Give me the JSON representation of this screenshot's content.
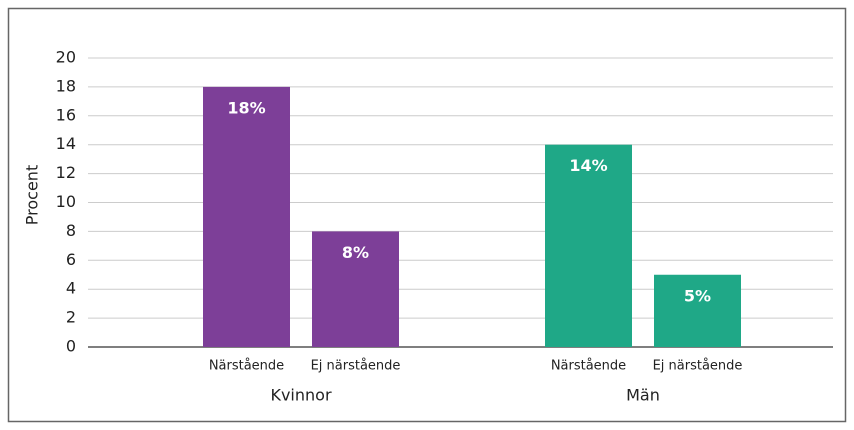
{
  "chart_data": {
    "type": "bar",
    "y_label": "Procent",
    "groups": [
      {
        "name": "Kvinnor",
        "color": "#7d3f98",
        "categories": [
          "Närstående",
          "Ej närstående"
        ],
        "values": [
          18,
          8
        ],
        "value_labels": [
          "18%",
          "8%"
        ]
      },
      {
        "name": "Män",
        "color": "#1fa887",
        "categories": [
          "Närstående",
          "Ej närstående"
        ],
        "values": [
          14,
          5
        ],
        "value_labels": [
          "14%",
          "5%"
        ]
      }
    ],
    "ylim": [
      0,
      20
    ],
    "yticks": [
      0,
      2,
      4,
      6,
      8,
      10,
      12,
      14,
      16,
      18,
      20
    ],
    "grid": true
  }
}
